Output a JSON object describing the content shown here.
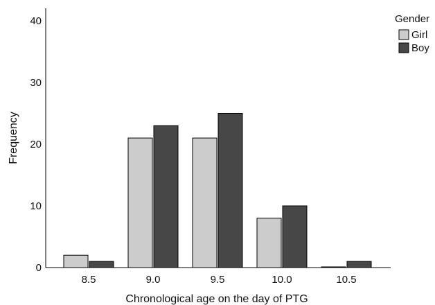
{
  "chart_data": {
    "type": "bar",
    "title": "",
    "xlabel": "Chronological age on the day of PTG",
    "ylabel": "Frequency",
    "categories": [
      "8.5",
      "9.0",
      "9.5",
      "10.0",
      "10.5"
    ],
    "series": [
      {
        "name": "Girl",
        "color": "#cccccc",
        "values": [
          2,
          21,
          21,
          8,
          0
        ]
      },
      {
        "name": "Boy",
        "color": "#474747",
        "values": [
          1,
          23,
          25,
          10,
          1
        ]
      }
    ],
    "ylim": [
      0,
      42
    ],
    "yticks": [
      "0",
      "10",
      "20",
      "30",
      "40"
    ],
    "legend": {
      "title": "Gender",
      "position": "top-right"
    },
    "grid": false
  }
}
